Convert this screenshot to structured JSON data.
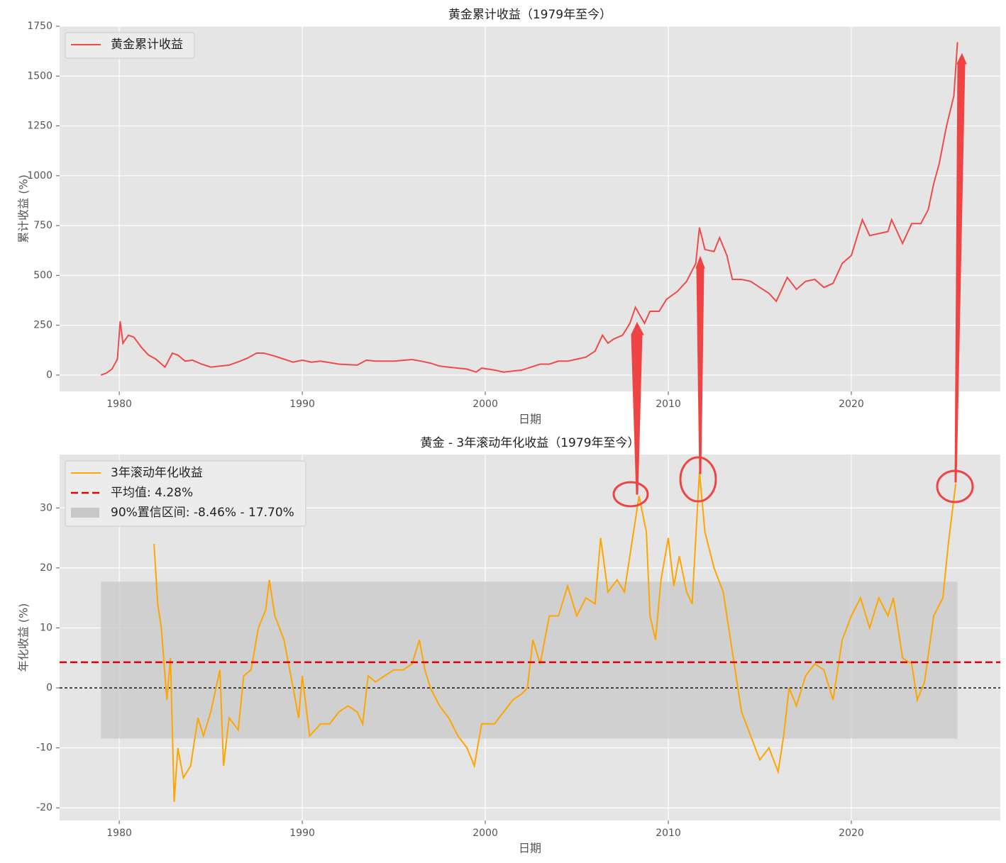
{
  "chart_data": [
    {
      "type": "line",
      "title": "黄金累计收益（1979年至今）",
      "xlabel": "日期",
      "ylabel": "累计收益 (%)",
      "x": [
        1979.0,
        1979.3,
        1979.6,
        1979.9,
        1980.05,
        1980.2,
        1980.5,
        1980.8,
        1981.2,
        1981.6,
        1982.0,
        1982.5,
        1982.9,
        1983.2,
        1983.6,
        1984.0,
        1984.5,
        1985.0,
        1985.5,
        1986.0,
        1986.6,
        1987.0,
        1987.5,
        1987.9,
        1988.5,
        1989.0,
        1989.5,
        1990.0,
        1990.5,
        1991.0,
        1992.0,
        1993.0,
        1993.5,
        1994.0,
        1995.0,
        1996.0,
        1996.5,
        1997.0,
        1997.5,
        1998.0,
        1999.0,
        1999.5,
        1999.8,
        2000.5,
        2001.0,
        2001.5,
        2002.0,
        2002.5,
        2003.0,
        2003.5,
        2004.0,
        2004.5,
        2005.0,
        2005.5,
        2006.0,
        2006.4,
        2006.7,
        2007.0,
        2007.5,
        2007.9,
        2008.2,
        2008.7,
        2009.0,
        2009.5,
        2009.9,
        2010.5,
        2011.0,
        2011.5,
        2011.7,
        2012.0,
        2012.5,
        2012.8,
        2013.2,
        2013.5,
        2014.0,
        2014.5,
        2015.0,
        2015.5,
        2015.9,
        2016.5,
        2017.0,
        2017.5,
        2018.0,
        2018.5,
        2019.0,
        2019.5,
        2020.0,
        2020.6,
        2021.0,
        2021.5,
        2022.0,
        2022.2,
        2022.8,
        2023.3,
        2023.8,
        2024.2,
        2024.5,
        2024.8,
        2025.2,
        2025.6,
        2025.8
      ],
      "series": [
        {
          "name": "黄金累计收益",
          "color": "#f04a4a",
          "values": [
            0,
            10,
            30,
            80,
            270,
            160,
            200,
            190,
            140,
            100,
            80,
            40,
            110,
            100,
            70,
            75,
            55,
            40,
            45,
            50,
            70,
            85,
            110,
            110,
            95,
            80,
            65,
            75,
            65,
            70,
            55,
            50,
            75,
            70,
            70,
            78,
            70,
            60,
            45,
            40,
            30,
            15,
            35,
            25,
            15,
            20,
            25,
            40,
            55,
            55,
            70,
            70,
            80,
            90,
            120,
            200,
            160,
            180,
            200,
            260,
            340,
            260,
            320,
            320,
            380,
            420,
            470,
            560,
            740,
            630,
            620,
            690,
            600,
            480,
            480,
            470,
            440,
            410,
            370,
            490,
            430,
            470,
            480,
            440,
            460,
            560,
            600,
            780,
            700,
            710,
            720,
            780,
            660,
            760,
            760,
            830,
            960,
            1060,
            1250,
            1400,
            1670
          ]
        }
      ],
      "xlim": [
        1976.74,
        2028.14
      ],
      "ylim": [
        -82,
        1750
      ],
      "xticks": [
        1980,
        1990,
        2000,
        2010,
        2020
      ],
      "yticks": [
        0,
        250,
        500,
        750,
        1000,
        1250,
        1500,
        1750
      ],
      "grid": true,
      "legend": "upper left"
    },
    {
      "type": "line",
      "title": "黄金 - 3年滚动年化收益（1979年至今）",
      "xlabel": "日期",
      "ylabel": "年化收益 (%)",
      "x": [
        1981.9,
        1982.1,
        1982.3,
        1982.6,
        1982.8,
        1983.0,
        1983.2,
        1983.5,
        1983.9,
        1984.3,
        1984.6,
        1985.0,
        1985.5,
        1985.7,
        1986.0,
        1986.5,
        1986.8,
        1987.2,
        1987.6,
        1988.0,
        1988.2,
        1988.5,
        1989.0,
        1989.5,
        1989.8,
        1990.0,
        1990.4,
        1991.0,
        1991.5,
        1992.0,
        1992.5,
        1993.0,
        1993.3,
        1993.6,
        1994.0,
        1994.5,
        1995.0,
        1995.5,
        1996.0,
        1996.4,
        1996.7,
        1997.0,
        1997.5,
        1998.0,
        1998.5,
        1999.0,
        1999.4,
        1999.8,
        2000.5,
        2001.0,
        2001.5,
        2002.0,
        2002.3,
        2002.6,
        2003.0,
        2003.5,
        2004.0,
        2004.5,
        2005.0,
        2005.5,
        2006.0,
        2006.3,
        2006.7,
        2007.2,
        2007.6,
        2008.0,
        2008.4,
        2008.8,
        2009.0,
        2009.3,
        2009.6,
        2010.0,
        2010.3,
        2010.6,
        2011.0,
        2011.3,
        2011.7,
        2012.0,
        2012.5,
        2013.0,
        2013.5,
        2014.0,
        2014.5,
        2015.0,
        2015.5,
        2016.0,
        2016.3,
        2016.6,
        2017.0,
        2017.5,
        2018.0,
        2018.5,
        2019.0,
        2019.5,
        2020.0,
        2020.5,
        2021.0,
        2021.5,
        2022.0,
        2022.3,
        2022.8,
        2023.3,
        2023.6,
        2024.0,
        2024.5,
        2025.0,
        2025.3,
        2025.7
      ],
      "series": [
        {
          "name": "3年滚动年化收益",
          "color": "#ffa500",
          "values": [
            24,
            14,
            10,
            -2,
            5,
            -19,
            -10,
            -15,
            -13,
            -5,
            -8,
            -4,
            3,
            -13,
            -5,
            -7,
            2,
            3,
            10,
            13,
            18,
            12,
            8,
            0,
            -5,
            2,
            -8,
            -6,
            -6,
            -4,
            -3,
            -4,
            -6,
            2,
            1,
            2,
            3,
            3,
            4,
            8,
            3,
            0,
            -3,
            -5,
            -8,
            -10,
            -13,
            -6,
            -6,
            -4,
            -2,
            -1,
            0,
            8,
            4,
            12,
            12,
            17,
            12,
            15,
            14,
            25,
            16,
            18,
            16,
            24,
            32,
            26,
            12,
            8,
            18,
            25,
            17,
            22,
            16,
            14,
            36,
            26,
            20,
            16,
            6,
            -4,
            -8,
            -12,
            -10,
            -14,
            -8,
            0,
            -3,
            2,
            4,
            3,
            -2,
            8,
            12,
            15,
            10,
            15,
            12,
            15,
            5,
            4,
            -2,
            1,
            12,
            15,
            24,
            34
          ]
        }
      ],
      "mean_line": {
        "name": "平均值: 4.28%",
        "value": 4.28,
        "color": "#e00000"
      },
      "band": {
        "name": "90%置信区间: -8.46% - 17.70%",
        "range": [
          -8.46,
          17.7
        ],
        "color": "#c8c8c8"
      },
      "hline": 0,
      "xlim": [
        1976.74,
        2028.14
      ],
      "ylim": [
        -22.1,
        38.9
      ],
      "xticks": [
        1980,
        1990,
        2000,
        2010,
        2020
      ],
      "yticks": [
        -20,
        -10,
        0,
        10,
        20,
        30
      ],
      "grid": true,
      "legend": "upper left"
    }
  ]
}
